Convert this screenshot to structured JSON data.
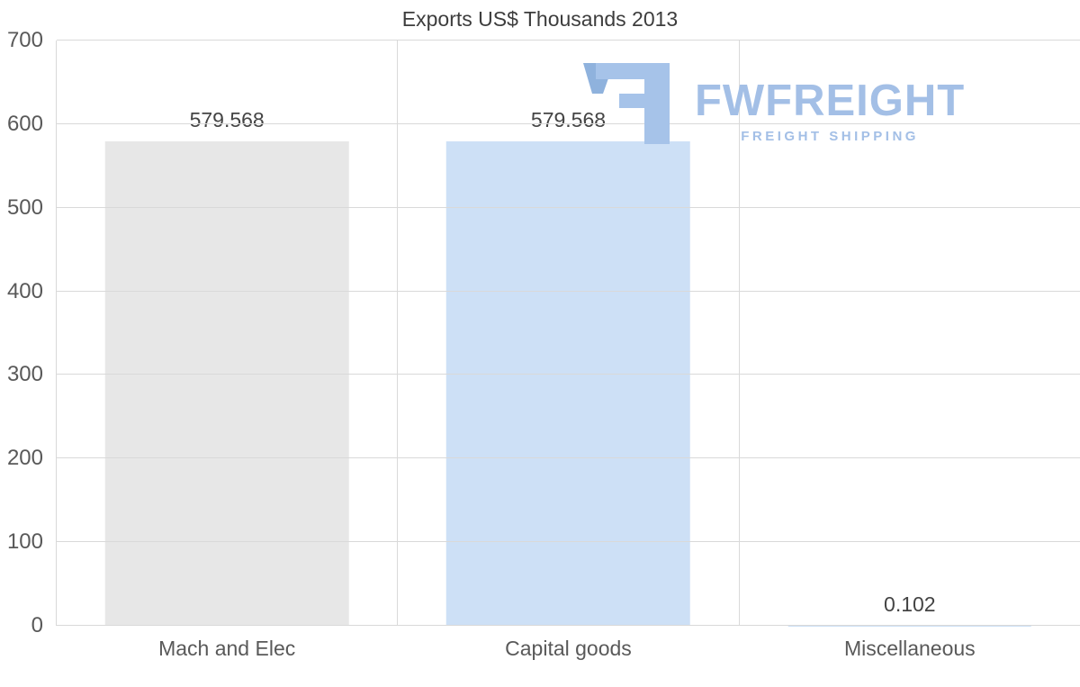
{
  "chart_data": {
    "type": "bar",
    "title": "Exports US$ Thousands 2013",
    "categories": [
      "Mach and Elec",
      "Capital goods",
      "Miscellaneous"
    ],
    "values": [
      579.568,
      579.568,
      0.102
    ],
    "value_labels": [
      "579.568",
      "579.568",
      "0.102"
    ],
    "xlabel": "",
    "ylabel": "",
    "ylim": [
      0,
      700
    ],
    "yticks": [
      0,
      100,
      200,
      300,
      400,
      500,
      600,
      700
    ],
    "grid": "horizontal gridlines + vertical category separators",
    "legend": "none",
    "bar_colors": [
      "#e7e7e7",
      "#cde0f6",
      "#cde0f6"
    ]
  },
  "watermark": {
    "brand": "FWFREIGHT",
    "tagline": "FREIGHT SHIPPING",
    "color": "#a3bfe6",
    "logo_color_main": "#a6c3e9",
    "logo_color_accent": "#8fb2dd"
  },
  "colors": {
    "background": "#ffffff",
    "grid": "#d9d9d9",
    "axis_text": "#595959",
    "title_text": "#3d3d3d"
  }
}
